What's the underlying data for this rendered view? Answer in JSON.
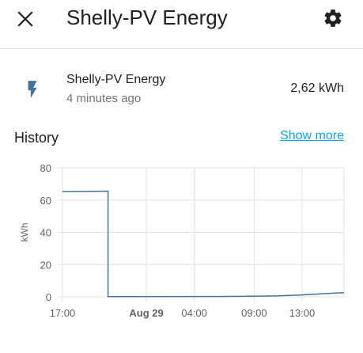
{
  "header": {
    "title": "Shelly-PV Energy",
    "close_icon": "close-icon",
    "settings_icon": "gear-icon"
  },
  "entity": {
    "icon": "flash-icon",
    "name": "Shelly-PV Energy",
    "last_changed": "4 minutes ago",
    "state": "2,62 kWh"
  },
  "history": {
    "title": "History",
    "show_more": "Show more"
  },
  "colors": {
    "accent": "#03a9f4",
    "series": "#44739e",
    "icon": "#44739e"
  },
  "chart_data": {
    "type": "line",
    "ylabel": "kWh",
    "ylim": [
      0,
      80
    ],
    "y_ticks": [
      "0",
      "20",
      "40",
      "60",
      "80"
    ],
    "x_ticks": [
      {
        "label": "17:00",
        "x": 17,
        "bold": false
      },
      {
        "label": "Aug 29",
        "x": 24,
        "bold": true
      },
      {
        "label": "04:00",
        "x": 28,
        "bold": false
      },
      {
        "label": "09:00",
        "x": 33,
        "bold": false
      },
      {
        "label": "13:00",
        "x": 37,
        "bold": false
      }
    ],
    "xlim": [
      17,
      40.5
    ],
    "grid": true,
    "series": [
      {
        "name": "",
        "points": [
          {
            "x": 17,
            "y": 65.3
          },
          {
            "x": 20.8,
            "y": 65.5
          },
          {
            "x": 20.8,
            "y": 0.1
          },
          {
            "x": 30,
            "y": 0.2
          },
          {
            "x": 33,
            "y": 0.4
          },
          {
            "x": 35,
            "y": 0.6
          },
          {
            "x": 37,
            "y": 1.2
          },
          {
            "x": 39,
            "y": 2.0
          },
          {
            "x": 40.5,
            "y": 2.62
          }
        ]
      }
    ]
  }
}
